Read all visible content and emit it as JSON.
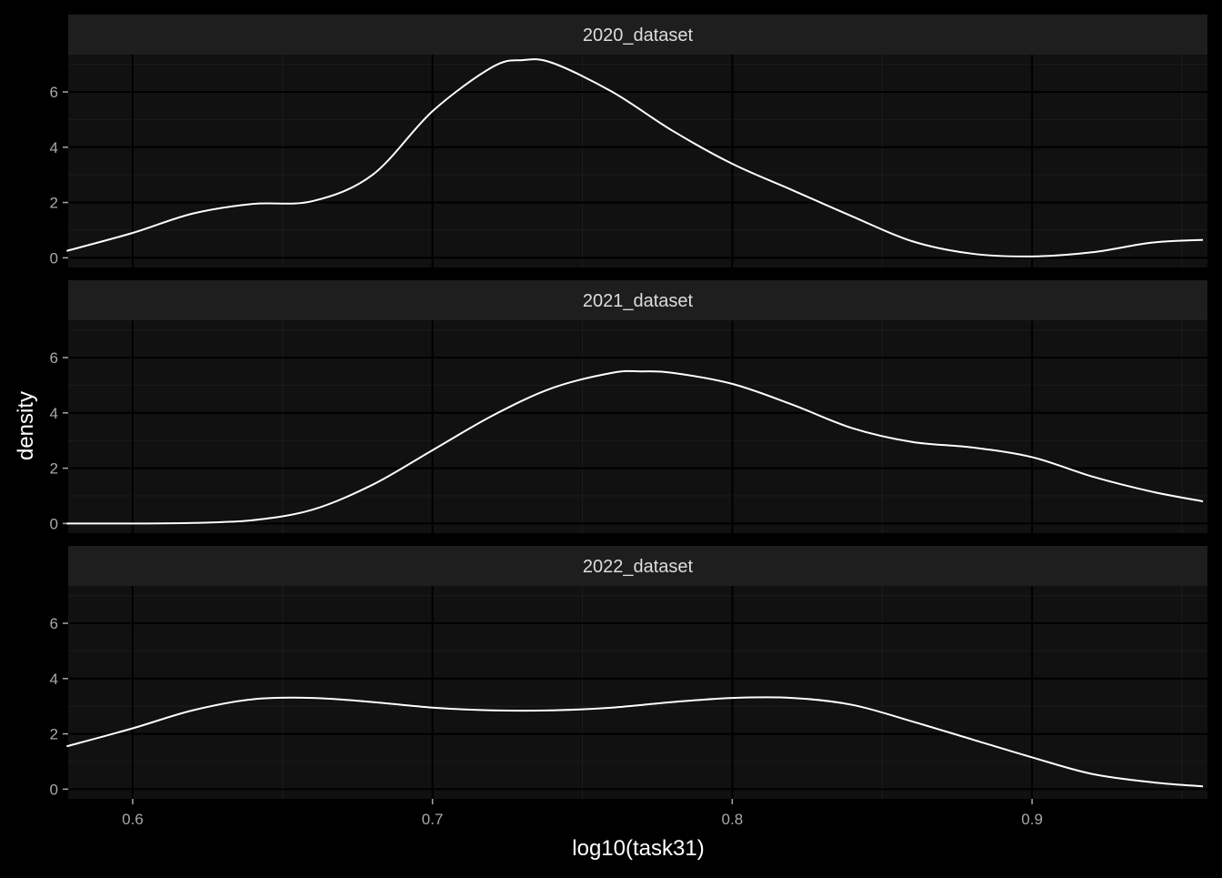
{
  "chart_data": {
    "type": "line",
    "xlabel": "log10(task31)",
    "ylabel": "density",
    "xlim": [
      0.5785,
      0.9585
    ],
    "ylim": [
      -0.35,
      7.35
    ],
    "x_ticks": [
      0.6,
      0.7,
      0.8,
      0.9
    ],
    "x_tick_labels": [
      "0.6",
      "0.7",
      "0.8",
      "0.9"
    ],
    "y_ticks": [
      0,
      2,
      4,
      6
    ],
    "y_tick_labels": [
      "0",
      "2",
      "4",
      "6"
    ],
    "grid": true,
    "legend": "none",
    "colors": {
      "background": "#000000",
      "panel": "#111111",
      "strip": "#1E1E1E",
      "grid_major": "#000000",
      "grid_minor": "#1C1C1C",
      "line": "#FFFFFF",
      "strip_text": "#DDDDDD",
      "tick_text": "#A8A8A8",
      "title_text": "#FFFFFF"
    },
    "series": [
      {
        "name": "2020_dataset",
        "x": [
          0.578,
          0.6,
          0.62,
          0.64,
          0.66,
          0.68,
          0.7,
          0.72,
          0.73,
          0.74,
          0.76,
          0.78,
          0.8,
          0.82,
          0.84,
          0.86,
          0.88,
          0.9,
          0.92,
          0.94,
          0.957
        ],
        "y": [
          0.25,
          0.9,
          1.6,
          1.95,
          2.05,
          3.0,
          5.3,
          6.9,
          7.15,
          7.05,
          6.0,
          4.6,
          3.4,
          2.45,
          1.5,
          0.6,
          0.15,
          0.05,
          0.2,
          0.55,
          0.65
        ]
      },
      {
        "name": "2021_dataset",
        "x": [
          0.578,
          0.6,
          0.62,
          0.64,
          0.66,
          0.68,
          0.7,
          0.72,
          0.74,
          0.76,
          0.77,
          0.78,
          0.8,
          0.82,
          0.84,
          0.86,
          0.88,
          0.9,
          0.92,
          0.94,
          0.957
        ],
        "y": [
          0.0,
          0.0,
          0.02,
          0.12,
          0.5,
          1.4,
          2.65,
          3.9,
          4.9,
          5.45,
          5.5,
          5.45,
          5.05,
          4.3,
          3.45,
          2.95,
          2.75,
          2.4,
          1.7,
          1.15,
          0.8
        ]
      },
      {
        "name": "2022_dataset",
        "x": [
          0.578,
          0.6,
          0.62,
          0.64,
          0.66,
          0.68,
          0.7,
          0.72,
          0.74,
          0.76,
          0.78,
          0.8,
          0.82,
          0.84,
          0.86,
          0.88,
          0.9,
          0.92,
          0.94,
          0.957
        ],
        "y": [
          1.55,
          2.2,
          2.85,
          3.25,
          3.3,
          3.15,
          2.95,
          2.85,
          2.85,
          2.95,
          3.15,
          3.3,
          3.3,
          3.05,
          2.45,
          1.8,
          1.15,
          0.55,
          0.25,
          0.1
        ]
      }
    ]
  }
}
